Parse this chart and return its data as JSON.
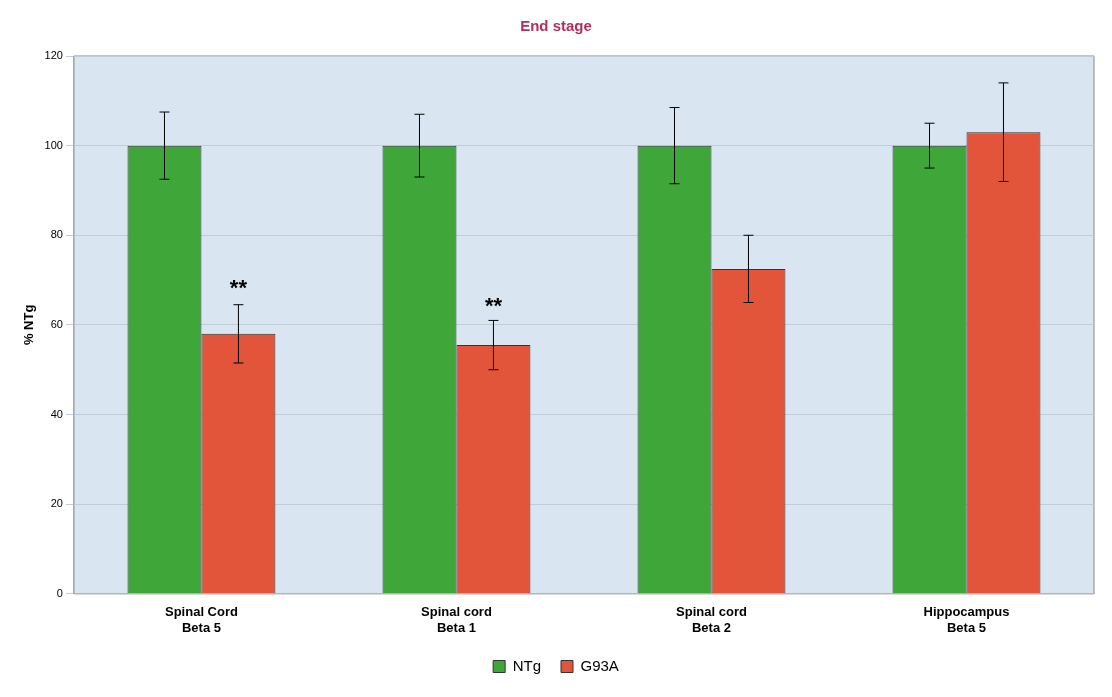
{
  "chart_data": {
    "type": "bar",
    "title": "End stage",
    "ylabel": "% NTg",
    "categories": [
      "Spinal Cord\nBeta 5",
      "Spinal cord\nBeta 1",
      "Spinal cord\nBeta 2",
      "Hippocampus\nBeta 5"
    ],
    "series": [
      {
        "name": "NTg",
        "color": "#3fa73a",
        "values": [
          100,
          100,
          100,
          100
        ],
        "errors": [
          7.5,
          7,
          8.5,
          5
        ]
      },
      {
        "name": "G93A",
        "color": "#e2553a",
        "values": [
          58,
          55.5,
          72.5,
          103
        ],
        "errors": [
          6.5,
          5.5,
          7.5,
          11
        ]
      }
    ],
    "ylim": [
      0,
      120
    ],
    "yticks": [
      0,
      20,
      40,
      60,
      80,
      100,
      120
    ],
    "grid": "y",
    "legend": "bottom",
    "annotations": [
      {
        "text": "**",
        "x": "Spinal Cord\nBeta 5",
        "y": 68
      },
      {
        "text": "**",
        "x": "Spinal cord\nBeta 1",
        "y": 64
      }
    ]
  }
}
